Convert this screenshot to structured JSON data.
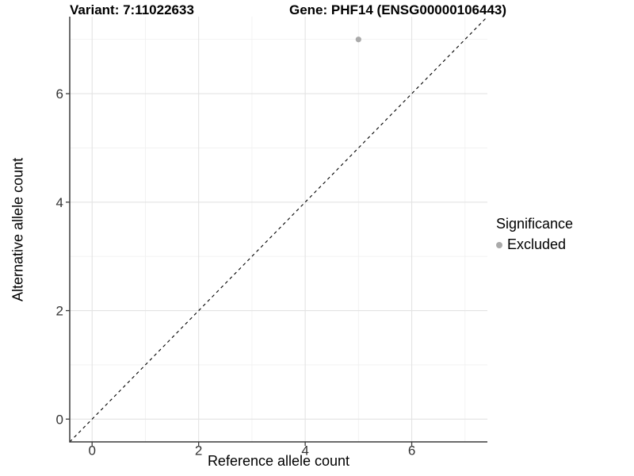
{
  "chart_data": {
    "type": "scatter",
    "titles": {
      "variant": "Variant: 7:11022633",
      "gene": "Gene: PHF14 (ENSG00000106443)"
    },
    "xlabel": "Reference allele count",
    "ylabel": "Alternative allele count",
    "xlim": [
      -0.42,
      7.42
    ],
    "ylim": [
      -0.42,
      7.42
    ],
    "x_ticks": [
      0,
      2,
      4,
      6
    ],
    "y_ticks": [
      0,
      2,
      4,
      6
    ],
    "x_minor_breaks": [
      1,
      3,
      5,
      7
    ],
    "y_minor_breaks": [
      1,
      3,
      5,
      7
    ],
    "grid": "major+minor",
    "series": [
      {
        "name": "Excluded",
        "color": "#aaaaaa",
        "points": [
          {
            "x": 5,
            "y": 7
          }
        ]
      }
    ],
    "reference_line": {
      "type": "identity",
      "slope": 1,
      "intercept": 0,
      "style": "dashed",
      "color": "#000000"
    },
    "legend": {
      "title": "Significance",
      "position": "right",
      "items": [
        {
          "label": "Excluded",
          "color": "#aaaaaa"
        }
      ]
    }
  },
  "colors": {
    "background": "#ffffff",
    "grid_major": "#e3e3e3",
    "grid_minor": "#f1f1f1",
    "axis_line": "#3a3a3a",
    "tick_mark": "#3a3a3a",
    "tick_label": "#333333"
  }
}
